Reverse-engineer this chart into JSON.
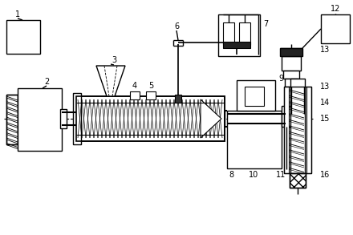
{
  "bg": "#ffffff",
  "lc": "#000000",
  "fig_w": 4.4,
  "fig_h": 2.93,
  "dpi": 100
}
